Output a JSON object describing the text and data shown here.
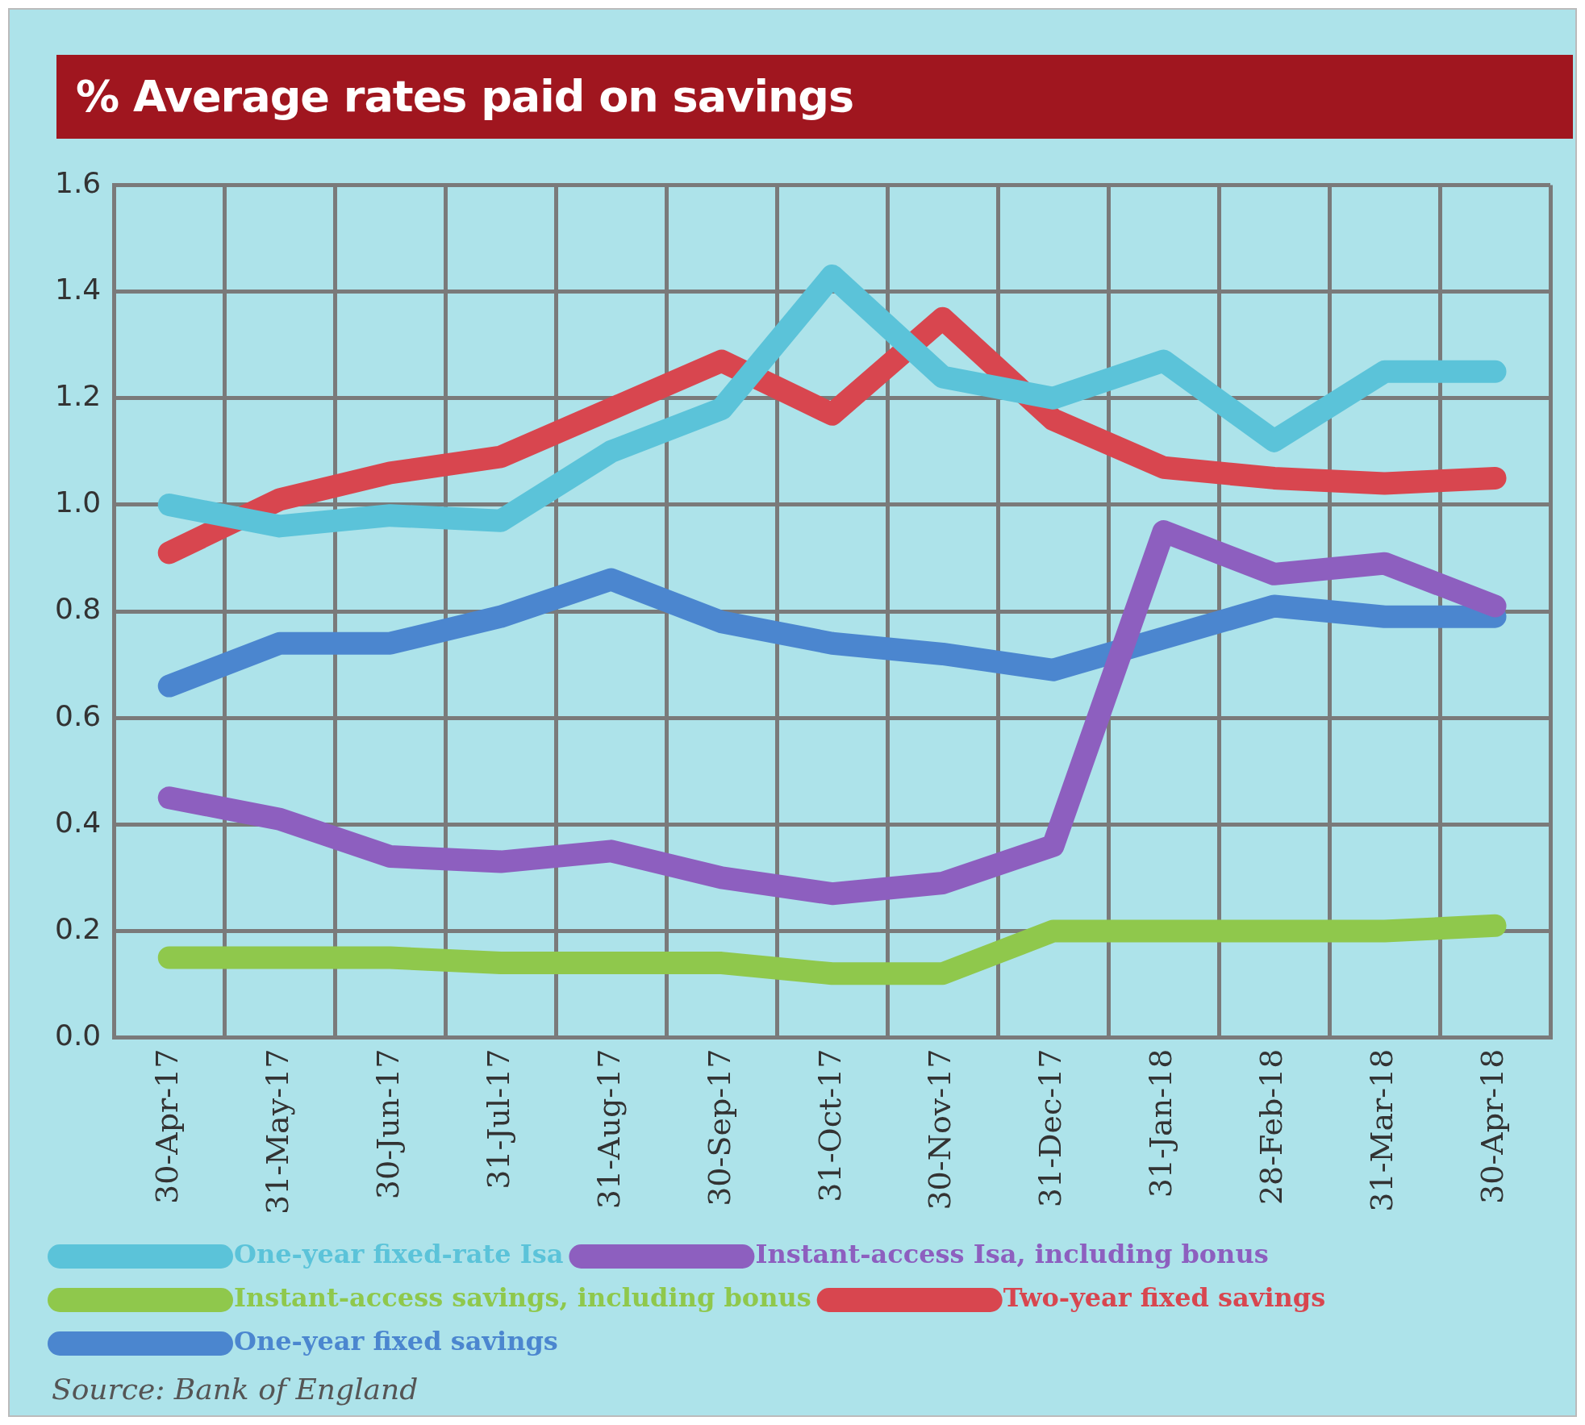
{
  "chart_data": {
    "type": "line",
    "title": "% Average rates paid on savings",
    "categories": [
      "30-Apr-17",
      "31-May-17",
      "30-Jun-17",
      "31-Jul-17",
      "31-Aug-17",
      "30-Sep-17",
      "31-Oct-17",
      "30-Nov-17",
      "31-Dec-17",
      "31-Jan-18",
      "28-Feb-18",
      "31-Mar-18",
      "30-Apr-18"
    ],
    "series": [
      {
        "name": "One-year fixed-rate Isa",
        "color": "#5bc3d9",
        "values": [
          1.0,
          0.96,
          0.98,
          0.97,
          1.1,
          1.18,
          1.43,
          1.24,
          1.2,
          1.27,
          1.12,
          1.25,
          1.25
        ]
      },
      {
        "name": "Instant-access Isa, including bonus",
        "color": "#8d5fbf",
        "values": [
          0.45,
          0.41,
          0.34,
          0.33,
          0.35,
          0.3,
          0.27,
          0.29,
          0.36,
          0.95,
          0.87,
          0.89,
          0.81
        ]
      },
      {
        "name": "Instant-access savings, including bonus",
        "color": "#8fc84c",
        "values": [
          0.15,
          0.15,
          0.15,
          0.14,
          0.14,
          0.14,
          0.12,
          0.12,
          0.2,
          0.2,
          0.2,
          0.2,
          0.21
        ]
      },
      {
        "name": "Two-year fixed savings",
        "color": "#d8464f",
        "values": [
          0.91,
          1.01,
          1.06,
          1.09,
          1.18,
          1.27,
          1.17,
          1.35,
          1.16,
          1.07,
          1.05,
          1.04,
          1.05
        ]
      },
      {
        "name": "One-year fixed savings",
        "color": "#4b86cf",
        "values": [
          0.66,
          0.74,
          0.74,
          0.79,
          0.86,
          0.78,
          0.74,
          0.72,
          0.69,
          0.75,
          0.81,
          0.79,
          0.79
        ]
      }
    ],
    "ylim": [
      0,
      1.6
    ],
    "yticks": [
      {
        "value": 0,
        "label": "0.0"
      },
      {
        "value": 0.2,
        "label": "0.2"
      },
      {
        "value": 0.4,
        "label": "0.4"
      },
      {
        "value": 0.6,
        "label": "0.6"
      },
      {
        "value": 0.8,
        "label": "0.8"
      },
      {
        "value": 1.0,
        "label": "1.0"
      },
      {
        "value": 1.2,
        "label": "1.2"
      },
      {
        "value": 1.4,
        "label": "1.4"
      },
      {
        "value": 1.6,
        "label": "1.6"
      }
    ],
    "grid": true,
    "legend": "bottom",
    "marker": "none",
    "line_style": "solid",
    "annotations": [
      "Source: Bank of England"
    ]
  }
}
